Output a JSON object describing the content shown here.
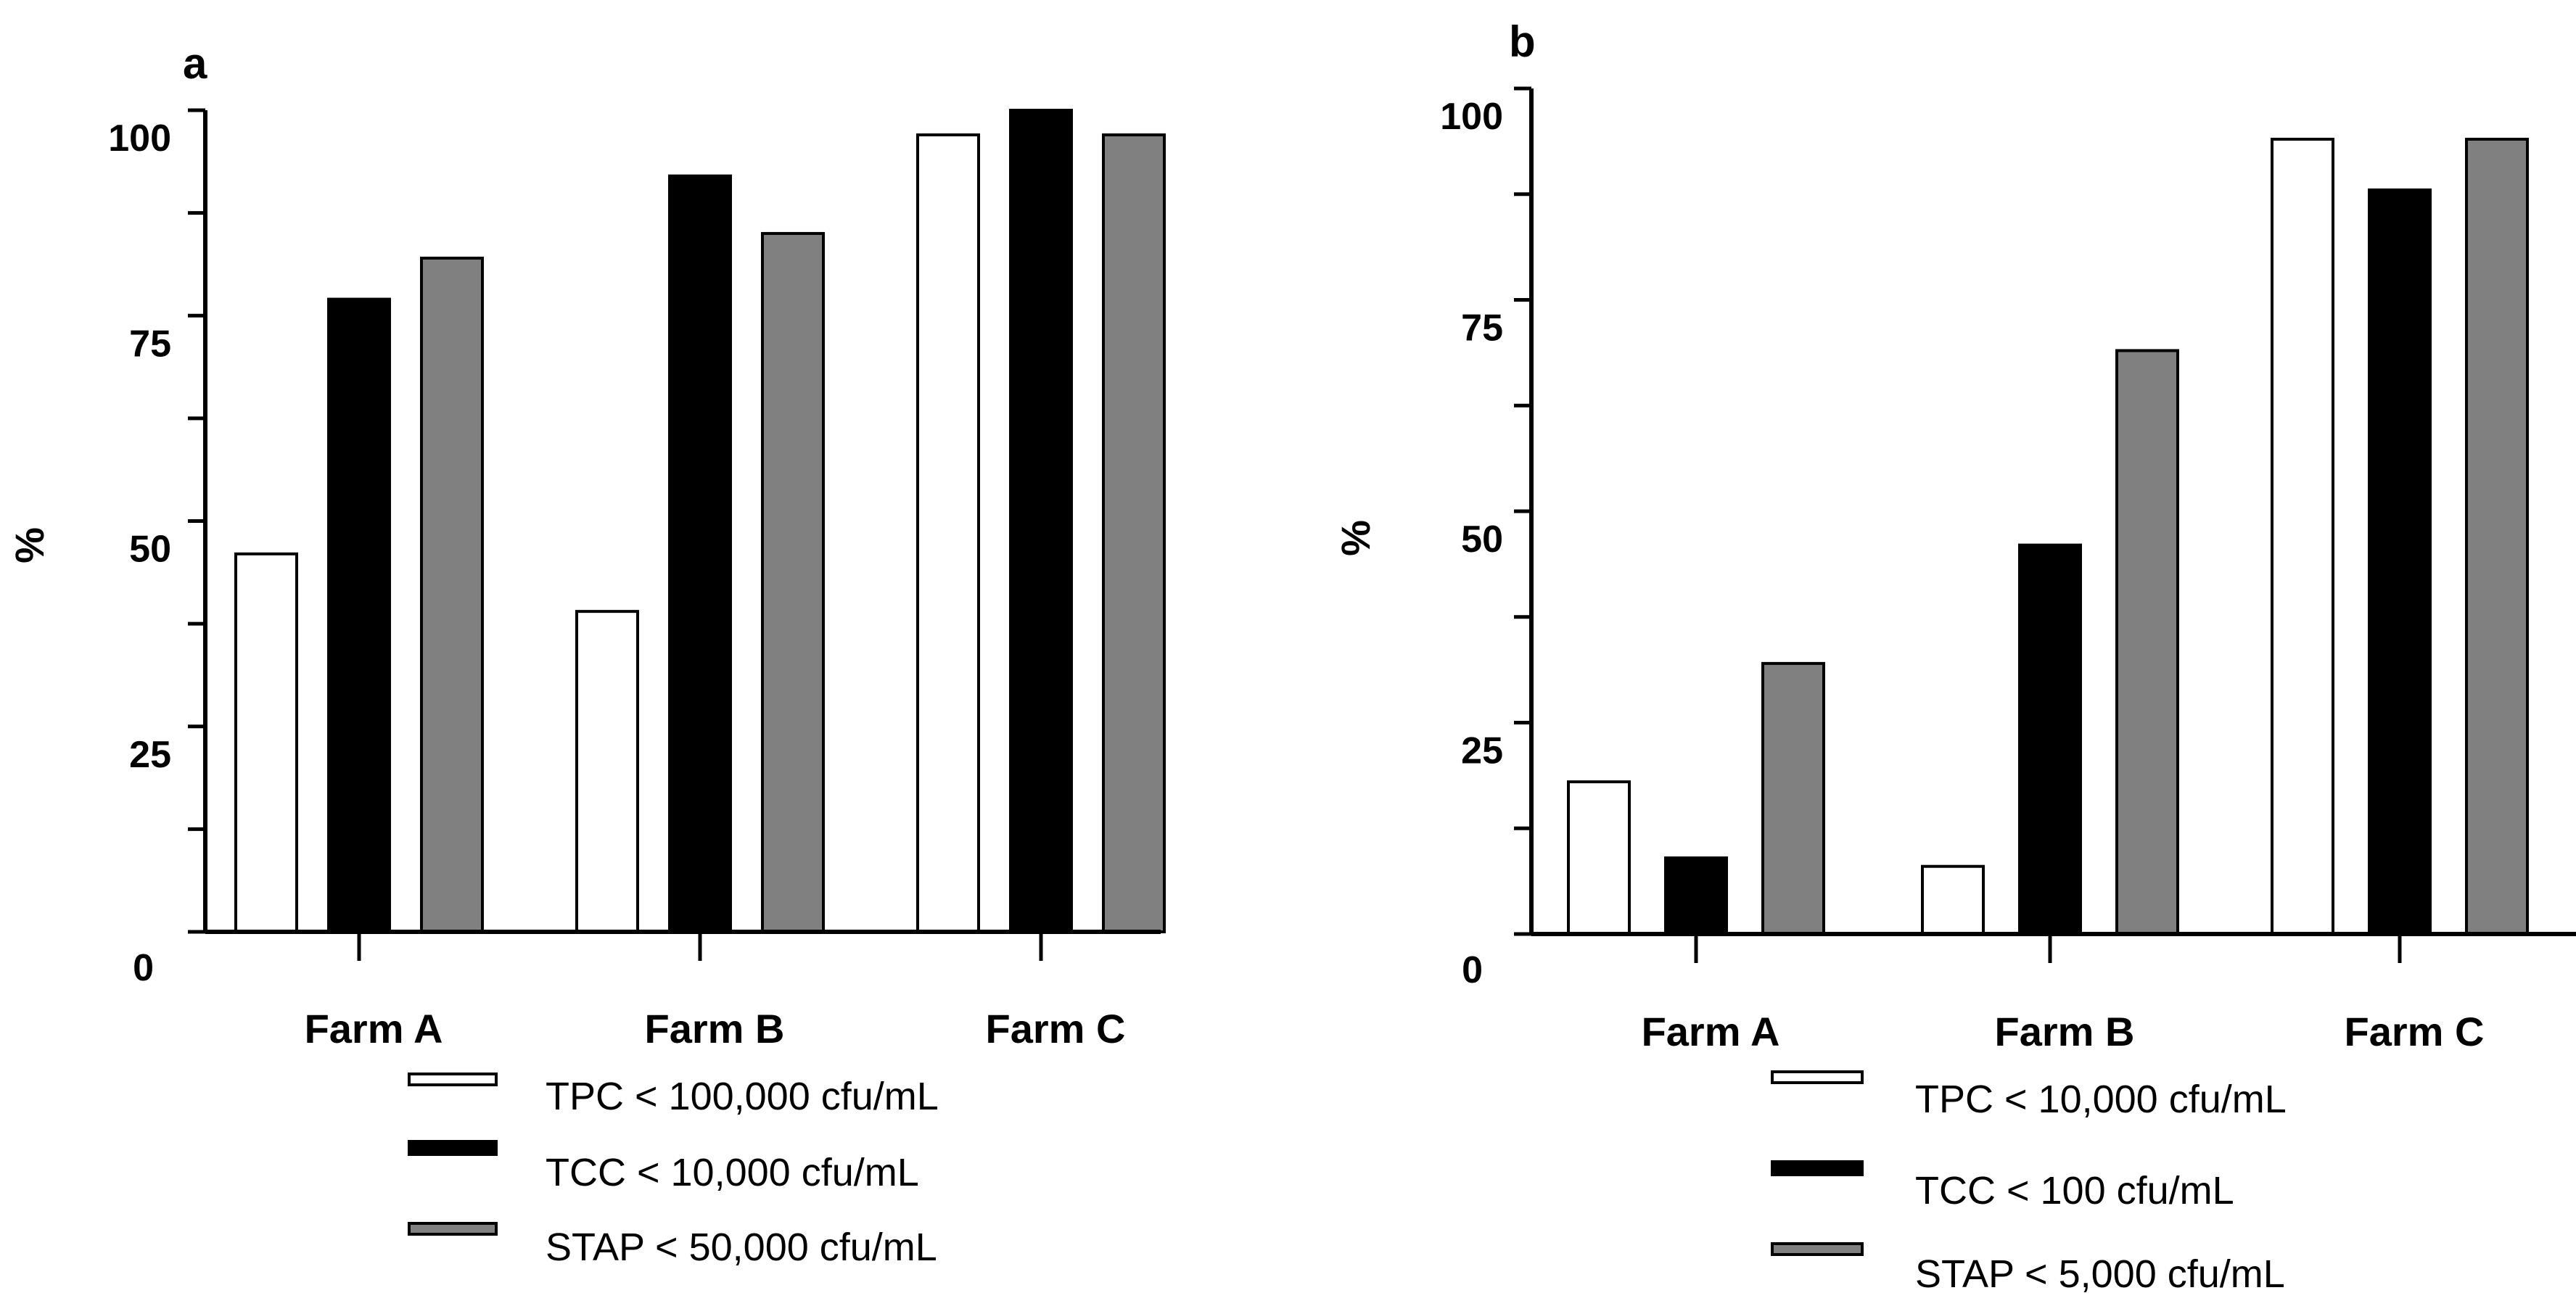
{
  "colors": {
    "white": "#ffffff",
    "black": "#000000",
    "gray": "#808080",
    "stroke": "#000000"
  },
  "chart_data": [
    {
      "panel": "a",
      "type": "bar",
      "categories": [
        "Farm A",
        "Farm B",
        "Farm C"
      ],
      "series": [
        {
          "name": "TPC < 100,000 cfu/mL",
          "color": "#ffffff",
          "values": [
            46,
            39,
            97
          ]
        },
        {
          "name": "TCC < 10,000 cfu/mL",
          "color": "#000000",
          "values": [
            77,
            92,
            100
          ]
        },
        {
          "name": "STAP < 50,000 cfu/mL",
          "color": "#808080",
          "values": [
            82,
            85,
            97
          ]
        }
      ],
      "ylabel": "%",
      "ylim": [
        0,
        100
      ],
      "yticks": [
        0,
        25,
        50,
        75,
        100
      ],
      "minor_ticks": [
        12.5,
        37.5,
        62.5,
        87.5
      ],
      "legend_position": "bottom",
      "grid": false
    },
    {
      "panel": "b",
      "type": "bar",
      "categories": [
        "Farm A",
        "Farm B",
        "Farm C"
      ],
      "series": [
        {
          "name": "TPC < 10,000 cfu/mL",
          "color": "#ffffff",
          "values": [
            18,
            8,
            94
          ]
        },
        {
          "name": "TCC < 100 cfu/mL",
          "color": "#000000",
          "values": [
            9,
            46,
            88
          ]
        },
        {
          "name": "STAP < 5,000 cfu/mL",
          "color": "#808080",
          "values": [
            32,
            69,
            94
          ]
        }
      ],
      "ylabel": "%",
      "ylim": [
        0,
        100
      ],
      "yticks": [
        0,
        25,
        50,
        75,
        100
      ],
      "minor_ticks": [
        12.5,
        37.5,
        62.5,
        87.5
      ],
      "legend_position": "bottom",
      "grid": false
    }
  ]
}
